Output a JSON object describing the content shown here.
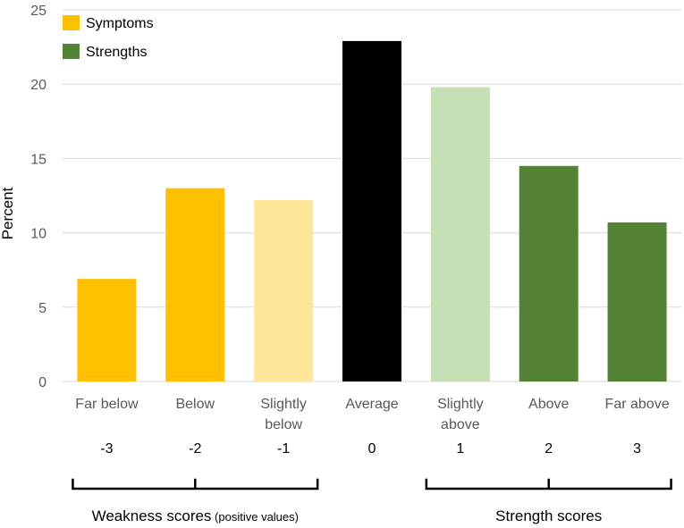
{
  "chart_data": {
    "type": "bar",
    "ylabel": "Percent",
    "ylim": [
      0,
      25
    ],
    "yticks": [
      0,
      5,
      10,
      15,
      20,
      25
    ],
    "gridlines": true,
    "categories": [
      {
        "label_lines": [
          "Far below"
        ],
        "score": "-3",
        "value": 6.9,
        "color": "#FFC000"
      },
      {
        "label_lines": [
          "Below"
        ],
        "score": "-2",
        "value": 13.0,
        "color": "#FFC000"
      },
      {
        "label_lines": [
          "Slightly",
          "below"
        ],
        "score": "-1",
        "value": 12.2,
        "color": "#FFE699"
      },
      {
        "label_lines": [
          "Average"
        ],
        "score": "0",
        "value": 22.9,
        "color": "#000000"
      },
      {
        "label_lines": [
          "Slightly",
          "above"
        ],
        "score": "1",
        "value": 19.8,
        "color": "#C5E0B4"
      },
      {
        "label_lines": [
          "Above"
        ],
        "score": "2",
        "value": 14.5,
        "color": "#548235"
      },
      {
        "label_lines": [
          "Far above"
        ],
        "score": "3",
        "value": 10.7,
        "color": "#548235"
      }
    ],
    "legend": {
      "position": "top-left",
      "items": [
        {
          "label": "Symptoms",
          "color": "#FFC000"
        },
        {
          "label": "Strengths",
          "color": "#548235"
        }
      ]
    },
    "groups": [
      {
        "main": "Weakness scores",
        "sub": "(positive values)",
        "from": 0,
        "to": 2
      },
      {
        "main": "Strength scores",
        "sub": "",
        "from": 4,
        "to": 6
      }
    ]
  }
}
